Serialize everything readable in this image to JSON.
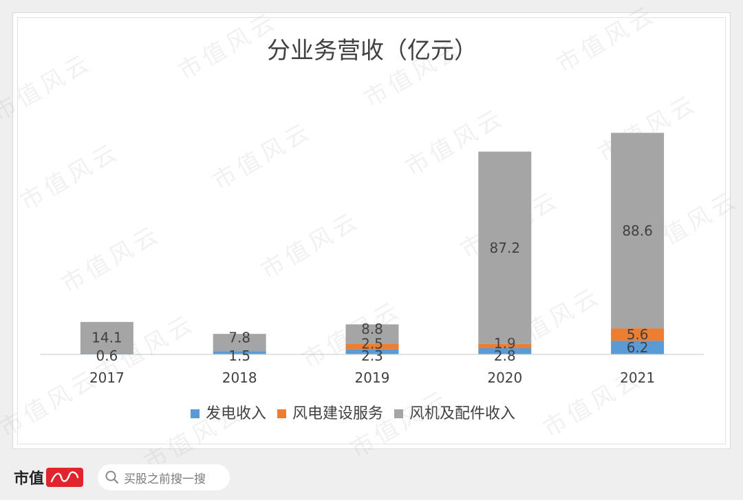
{
  "chart_data": {
    "type": "bar",
    "stacked": true,
    "title": "分业务营收（亿元）",
    "categories": [
      "2017",
      "2018",
      "2019",
      "2020",
      "2021"
    ],
    "series": [
      {
        "name": "发电收入",
        "color": "#5b9bd5",
        "values": [
          0.6,
          1.5,
          2.3,
          2.8,
          6.2
        ]
      },
      {
        "name": "风电建设服务",
        "color": "#ed7d31",
        "values": [
          0,
          0,
          2.5,
          1.9,
          5.6
        ]
      },
      {
        "name": "风机及配件收入",
        "color": "#a5a5a5",
        "values": [
          14.1,
          7.8,
          8.8,
          87.2,
          88.6
        ]
      }
    ],
    "data_labels": [
      [
        "0.6",
        "1.5",
        "2.3",
        "2.8",
        "6.2"
      ],
      [
        "",
        "",
        "2.5",
        "1.9",
        "5.6"
      ],
      [
        "14.1",
        "7.8",
        "8.8",
        "87.2",
        "88.6"
      ]
    ],
    "legend_position": "bottom",
    "gridlines": false,
    "ylim": [
      0,
      108
    ]
  },
  "footer": {
    "brand": "市值",
    "search_placeholder": "买股之前搜一搜"
  },
  "watermark_text": "市值风云"
}
